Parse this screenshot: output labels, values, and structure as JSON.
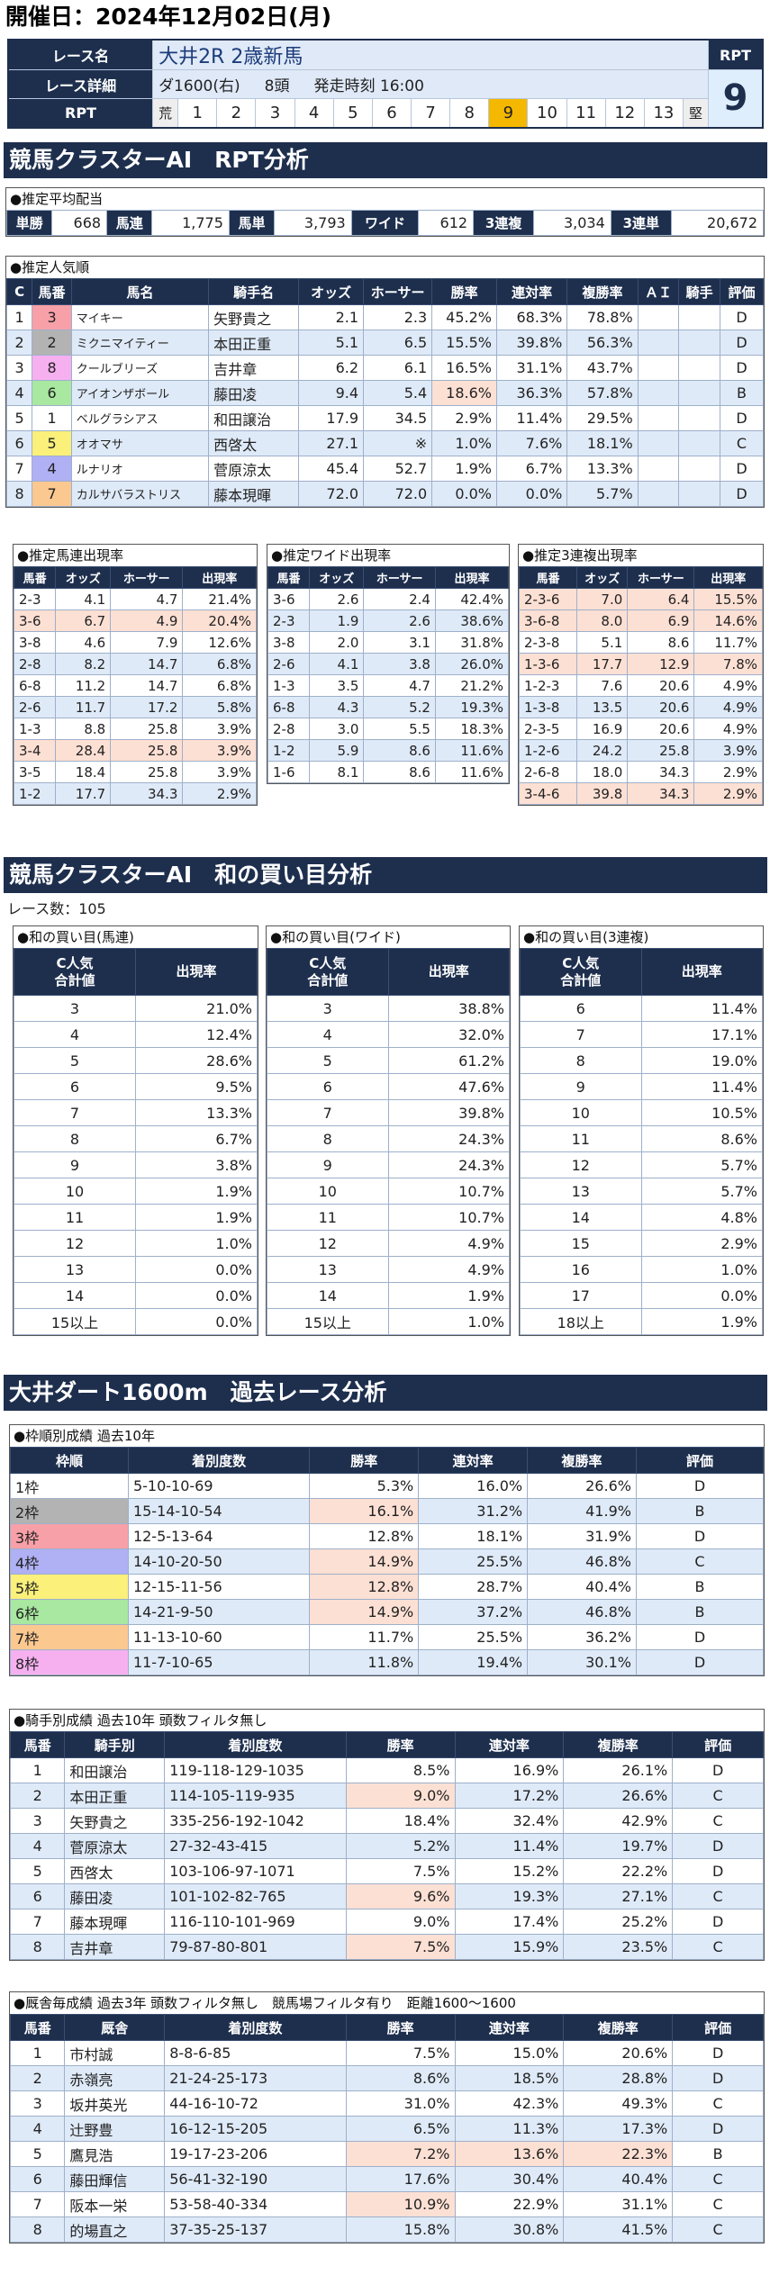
{
  "date": "開催日：2024年12月02日(月)",
  "race": {
    "name_label": "レース名",
    "name": "大井2R 2歳新馬",
    "detail_label": "レース詳細",
    "course": "ダ1600(右)",
    "heads": "8頭",
    "start": "発走時刻 16:00",
    "rpt_label": "RPT",
    "scale": [
      "荒",
      "1",
      "2",
      "3",
      "4",
      "5",
      "6",
      "7",
      "8",
      "9",
      "10",
      "11",
      "12",
      "13",
      "堅"
    ],
    "rpt_value": "9"
  },
  "sec1": "競馬クラスターAI　RPT分析",
  "odds_title": "●推定平均配当",
  "odds": [
    [
      "単勝",
      "668"
    ],
    [
      "馬連",
      "1,775"
    ],
    [
      "馬単",
      "3,793"
    ],
    [
      "ワイド",
      "612"
    ],
    [
      "3連複",
      "3,034"
    ],
    [
      "3連単",
      "20,672"
    ]
  ],
  "pop_title": "●推定人気順",
  "pop_head": [
    "C",
    "馬番",
    "馬名",
    "騎手名",
    "オッズ",
    "ホーサー",
    "勝率",
    "連対率",
    "複勝率",
    "ＡＩ",
    "騎手",
    "評価"
  ],
  "pop_rows": [
    [
      "1",
      "3",
      "マイキー",
      "矢野貴之",
      "2.1",
      "2.3",
      "45.2%",
      "68.3%",
      "78.8%",
      "",
      "",
      "D"
    ],
    [
      "2",
      "2",
      "ミクニマイティー",
      "本田正重",
      "5.1",
      "6.5",
      "15.5%",
      "39.8%",
      "56.3%",
      "",
      "",
      "D"
    ],
    [
      "3",
      "8",
      "クールブリーズ",
      "吉井章",
      "6.2",
      "6.1",
      "16.5%",
      "31.1%",
      "43.7%",
      "",
      "",
      "D"
    ],
    [
      "4",
      "6",
      "アイオンザボール",
      "藤田凌",
      "9.4",
      "5.4",
      "18.6%",
      "36.3%",
      "57.8%",
      "",
      "",
      "B"
    ],
    [
      "5",
      "1",
      "ベルグラシアス",
      "和田譲治",
      "17.9",
      "34.5",
      "2.9%",
      "11.4%",
      "29.5%",
      "",
      "",
      "D"
    ],
    [
      "6",
      "5",
      "オオマサ",
      "西啓太",
      "27.1",
      "※",
      "1.0%",
      "7.6%",
      "18.1%",
      "",
      "",
      "C"
    ],
    [
      "7",
      "4",
      "ルナリオ",
      "菅原涼太",
      "45.4",
      "52.7",
      "1.9%",
      "6.7%",
      "13.3%",
      "",
      "",
      "D"
    ],
    [
      "8",
      "7",
      "カルサバラストリス",
      "藤本現暉",
      "72.0",
      "72.0",
      "0.0%",
      "0.0%",
      "5.7%",
      "",
      "",
      "D"
    ]
  ],
  "umaren_title": "●推定馬連出現率",
  "wide_title": "●推定ワイド出現率",
  "trio_title": "●推定3連複出現率",
  "sub_head": [
    "馬番",
    "オッズ",
    "ホーサー",
    "出現率"
  ],
  "umaren": [
    [
      "2-3",
      "4.1",
      "4.7",
      "21.4%"
    ],
    [
      "3-6",
      "6.7",
      "4.9",
      "20.4%"
    ],
    [
      "3-8",
      "4.6",
      "7.9",
      "12.6%"
    ],
    [
      "2-8",
      "8.2",
      "14.7",
      "6.8%"
    ],
    [
      "6-8",
      "11.2",
      "14.7",
      "6.8%"
    ],
    [
      "2-6",
      "11.7",
      "17.2",
      "5.8%"
    ],
    [
      "1-3",
      "8.8",
      "25.8",
      "3.9%"
    ],
    [
      "3-4",
      "28.4",
      "25.8",
      "3.9%"
    ],
    [
      "3-5",
      "18.4",
      "25.8",
      "3.9%"
    ],
    [
      "1-2",
      "17.7",
      "34.3",
      "2.9%"
    ]
  ],
  "wide": [
    [
      "3-6",
      "2.6",
      "2.4",
      "42.4%"
    ],
    [
      "2-3",
      "1.9",
      "2.6",
      "38.6%"
    ],
    [
      "3-8",
      "2.0",
      "3.1",
      "31.8%"
    ],
    [
      "2-6",
      "4.1",
      "3.8",
      "26.0%"
    ],
    [
      "1-3",
      "3.5",
      "4.7",
      "21.2%"
    ],
    [
      "6-8",
      "4.3",
      "5.2",
      "19.3%"
    ],
    [
      "2-8",
      "3.0",
      "5.5",
      "18.3%"
    ],
    [
      "1-2",
      "5.9",
      "8.6",
      "11.6%"
    ],
    [
      "1-6",
      "8.1",
      "8.6",
      "11.6%"
    ]
  ],
  "trio": [
    [
      "2-3-6",
      "7.0",
      "6.4",
      "15.5%"
    ],
    [
      "3-6-8",
      "8.0",
      "6.9",
      "14.6%"
    ],
    [
      "2-3-8",
      "5.1",
      "8.6",
      "11.7%"
    ],
    [
      "1-3-6",
      "17.7",
      "12.9",
      "7.8%"
    ],
    [
      "1-2-3",
      "7.6",
      "20.6",
      "4.9%"
    ],
    [
      "1-3-8",
      "13.5",
      "20.6",
      "4.9%"
    ],
    [
      "2-3-5",
      "16.9",
      "20.6",
      "4.9%"
    ],
    [
      "1-2-6",
      "24.2",
      "25.8",
      "3.9%"
    ],
    [
      "2-6-8",
      "18.0",
      "34.3",
      "2.9%"
    ],
    [
      "3-4-6",
      "39.8",
      "34.3",
      "2.9%"
    ]
  ],
  "sec2": "競馬クラスターAI　和の買い目分析",
  "race_count": "レース数：105",
  "m_title1": "●和の買い目(馬連)",
  "m_title2": "●和の買い目(ワイド)",
  "m_title3": "●和の買い目(3連複)",
  "m_head": [
    "C人気\n合計値",
    "出現率"
  ],
  "m1": [
    [
      "3",
      "21.0%"
    ],
    [
      "4",
      "12.4%"
    ],
    [
      "5",
      "28.6%"
    ],
    [
      "6",
      "9.5%"
    ],
    [
      "7",
      "13.3%"
    ],
    [
      "8",
      "6.7%"
    ],
    [
      "9",
      "3.8%"
    ],
    [
      "10",
      "1.9%"
    ],
    [
      "11",
      "1.9%"
    ],
    [
      "12",
      "1.0%"
    ],
    [
      "13",
      "0.0%"
    ],
    [
      "14",
      "0.0%"
    ],
    [
      "15以上",
      "0.0%"
    ]
  ],
  "m2": [
    [
      "3",
      "38.8%"
    ],
    [
      "4",
      "32.0%"
    ],
    [
      "5",
      "61.2%"
    ],
    [
      "6",
      "47.6%"
    ],
    [
      "7",
      "39.8%"
    ],
    [
      "8",
      "24.3%"
    ],
    [
      "9",
      "24.3%"
    ],
    [
      "10",
      "10.7%"
    ],
    [
      "11",
      "10.7%"
    ],
    [
      "12",
      "4.9%"
    ],
    [
      "13",
      "4.9%"
    ],
    [
      "14",
      "1.9%"
    ],
    [
      "15以上",
      "1.0%"
    ]
  ],
  "m3": [
    [
      "6",
      "11.4%"
    ],
    [
      "7",
      "17.1%"
    ],
    [
      "8",
      "19.0%"
    ],
    [
      "9",
      "11.4%"
    ],
    [
      "10",
      "10.5%"
    ],
    [
      "11",
      "8.6%"
    ],
    [
      "12",
      "5.7%"
    ],
    [
      "13",
      "5.7%"
    ],
    [
      "14",
      "4.8%"
    ],
    [
      "15",
      "2.9%"
    ],
    [
      "16",
      "1.0%"
    ],
    [
      "17",
      "0.0%"
    ],
    [
      "18以上",
      "1.9%"
    ]
  ],
  "sec3": "大井ダート1600m　過去レース分析",
  "frame_title": "●枠順別成績 過去10年",
  "frame_head": [
    "枠順",
    "着別度数",
    "勝率",
    "連対率",
    "複勝率",
    "評価"
  ],
  "frame": [
    [
      "1枠",
      "5-10-10-69",
      "5.3%",
      "16.0%",
      "26.6%",
      "D"
    ],
    [
      "2枠",
      "15-14-10-54",
      "16.1%",
      "31.2%",
      "41.9%",
      "B"
    ],
    [
      "3枠",
      "12-5-13-64",
      "12.8%",
      "18.1%",
      "31.9%",
      "D"
    ],
    [
      "4枠",
      "14-10-20-50",
      "14.9%",
      "25.5%",
      "46.8%",
      "C"
    ],
    [
      "5枠",
      "12-15-11-56",
      "12.8%",
      "28.7%",
      "40.4%",
      "B"
    ],
    [
      "6枠",
      "14-21-9-50",
      "14.9%",
      "37.2%",
      "46.8%",
      "B"
    ],
    [
      "7枠",
      "11-13-10-60",
      "11.7%",
      "25.5%",
      "36.2%",
      "D"
    ],
    [
      "8枠",
      "11-7-10-65",
      "11.8%",
      "19.4%",
      "30.1%",
      "D"
    ]
  ],
  "jockey_title": "●騎手別成績 過去10年 頭数フィルタ無し",
  "jockey_head": [
    "馬番",
    "騎手別",
    "着別度数",
    "勝率",
    "連対率",
    "複勝率",
    "評価"
  ],
  "jockey": [
    [
      "1",
      "和田譲治",
      "119-118-129-1035",
      "8.5%",
      "16.9%",
      "26.1%",
      "D"
    ],
    [
      "2",
      "本田正重",
      "114-105-119-935",
      "9.0%",
      "17.2%",
      "26.6%",
      "C"
    ],
    [
      "3",
      "矢野貴之",
      "335-256-192-1042",
      "18.4%",
      "32.4%",
      "42.9%",
      "C"
    ],
    [
      "4",
      "菅原涼太",
      "27-32-43-415",
      "5.2%",
      "11.4%",
      "19.7%",
      "D"
    ],
    [
      "5",
      "西啓太",
      "103-106-97-1071",
      "7.5%",
      "15.2%",
      "22.2%",
      "D"
    ],
    [
      "6",
      "藤田凌",
      "101-102-82-765",
      "9.6%",
      "19.3%",
      "27.1%",
      "C"
    ],
    [
      "7",
      "藤本現暉",
      "116-110-101-969",
      "9.0%",
      "17.4%",
      "25.2%",
      "D"
    ],
    [
      "8",
      "吉井章",
      "79-87-80-801",
      "7.5%",
      "15.9%",
      "23.5%",
      "C"
    ]
  ],
  "stable_title": "●厩舎毎成績 過去3年 頭数フィルタ無し　競馬場フィルタ有り　距離1600～1600",
  "stable_head": [
    "馬番",
    "厩舎",
    "着別度数",
    "勝率",
    "連対率",
    "複勝率",
    "評価"
  ],
  "stable": [
    [
      "1",
      "市村誠",
      "8-8-6-85",
      "7.5%",
      "15.0%",
      "20.6%",
      "D"
    ],
    [
      "2",
      "赤嶺亮",
      "21-24-25-173",
      "8.6%",
      "18.5%",
      "28.8%",
      "D"
    ],
    [
      "3",
      "坂井英光",
      "44-16-10-72",
      "31.0%",
      "42.3%",
      "49.3%",
      "C"
    ],
    [
      "4",
      "辻野豊",
      "16-12-15-205",
      "6.5%",
      "11.3%",
      "17.3%",
      "D"
    ],
    [
      "5",
      "鷹見浩",
      "19-17-23-206",
      "7.2%",
      "13.6%",
      "22.3%",
      "B"
    ],
    [
      "6",
      "藤田輝信",
      "56-41-32-190",
      "17.6%",
      "30.4%",
      "40.4%",
      "C"
    ],
    [
      "7",
      "阪本一栄",
      "53-58-40-334",
      "10.9%",
      "22.9%",
      "31.1%",
      "C"
    ],
    [
      "8",
      "的場直之",
      "37-35-25-137",
      "15.8%",
      "30.8%",
      "41.5%",
      "C"
    ]
  ],
  "colors": {
    "navy": "#1e2f4e",
    "highlight": "#f5b800",
    "orange": "#f59a32",
    "pink": "#fde0d4"
  }
}
